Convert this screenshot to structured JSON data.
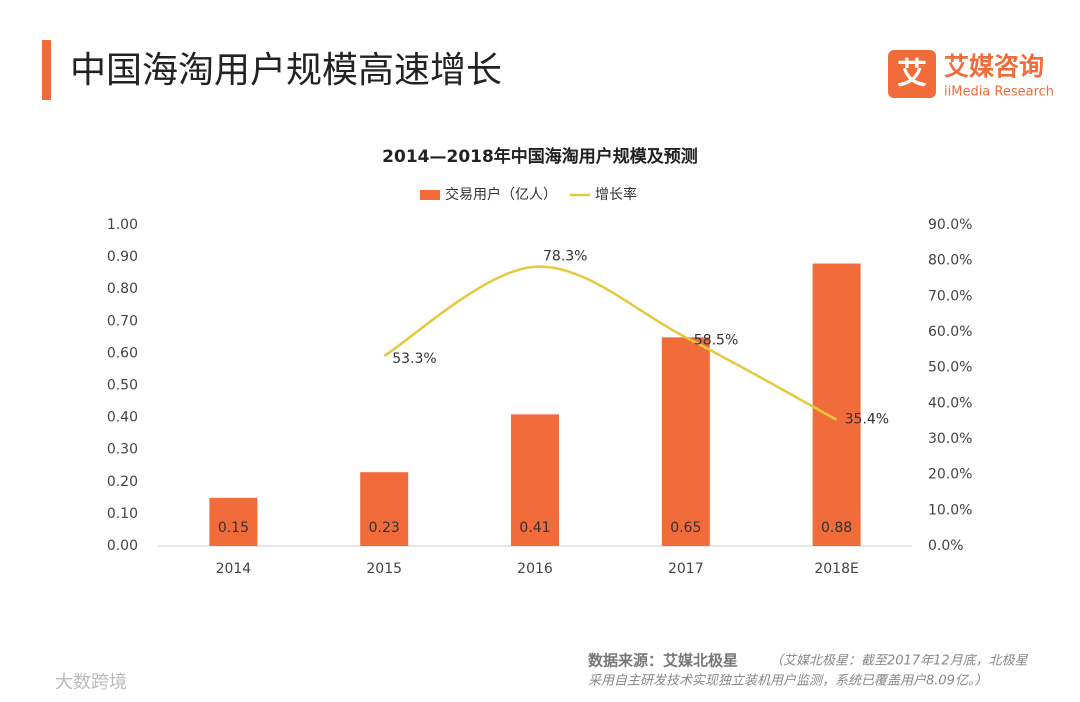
{
  "header": {
    "title": "中国海淘用户规模高速增长",
    "logo_text": "艾媒咨询",
    "logo_sub": "iiMedia Research",
    "logo_icon": "艾"
  },
  "chart_data": {
    "type": "bar",
    "title": "2014—2018年中国海淘用户规模及预测",
    "categories": [
      "2014",
      "2015",
      "2016",
      "2017",
      "2018E"
    ],
    "series": [
      {
        "name": "交易用户（亿人）",
        "type": "bar",
        "color": "#f26b3a",
        "values": [
          0.15,
          0.23,
          0.41,
          0.65,
          0.88
        ]
      },
      {
        "name": "增长率",
        "type": "line",
        "axis": "y2",
        "color": "#e6c83c",
        "values": [
          null,
          53.3,
          78.3,
          58.5,
          35.4
        ],
        "value_labels": [
          null,
          "53.3%",
          "78.3%",
          "58.5%",
          "35.4%"
        ]
      }
    ],
    "ylim": [
      0,
      1
    ],
    "yticks": [
      {
        "value": 0,
        "label": "0.00"
      },
      {
        "value": 0.1,
        "label": "0.10"
      },
      {
        "value": 0.2,
        "label": "0.20"
      },
      {
        "value": 0.3,
        "label": "0.30"
      },
      {
        "value": 0.4,
        "label": "0.40"
      },
      {
        "value": 0.5,
        "label": "0.50"
      },
      {
        "value": 0.6,
        "label": "0.60"
      },
      {
        "value": 0.7,
        "label": "0.70"
      },
      {
        "value": 0.8,
        "label": "0.80"
      },
      {
        "value": 0.9,
        "label": "0.90"
      },
      {
        "value": 1,
        "label": "1.00"
      }
    ],
    "y2lim": [
      0,
      90
    ],
    "y2ticks": [
      {
        "value": 0,
        "label": "0.0%"
      },
      {
        "value": 10,
        "label": "10.0%"
      },
      {
        "value": 20,
        "label": "20.0%"
      },
      {
        "value": 30,
        "label": "30.0%"
      },
      {
        "value": 40,
        "label": "40.0%"
      },
      {
        "value": 50,
        "label": "50.0%"
      },
      {
        "value": 60,
        "label": "60.0%"
      },
      {
        "value": 70,
        "label": "70.0%"
      },
      {
        "value": 80,
        "label": "80.0%"
      },
      {
        "value": 90,
        "label": "90.0%"
      }
    ],
    "legend": "top",
    "grid": false
  },
  "footer": {
    "source_label": "数据来源：艾媒北极星",
    "source_note_1": "（艾媒北极星：截至2017年12月底，北极星",
    "source_note_2": "采用自主研发技术实现独立装机用户监测，系统已覆盖用户8.09亿。）",
    "watermark": "大数跨境"
  }
}
